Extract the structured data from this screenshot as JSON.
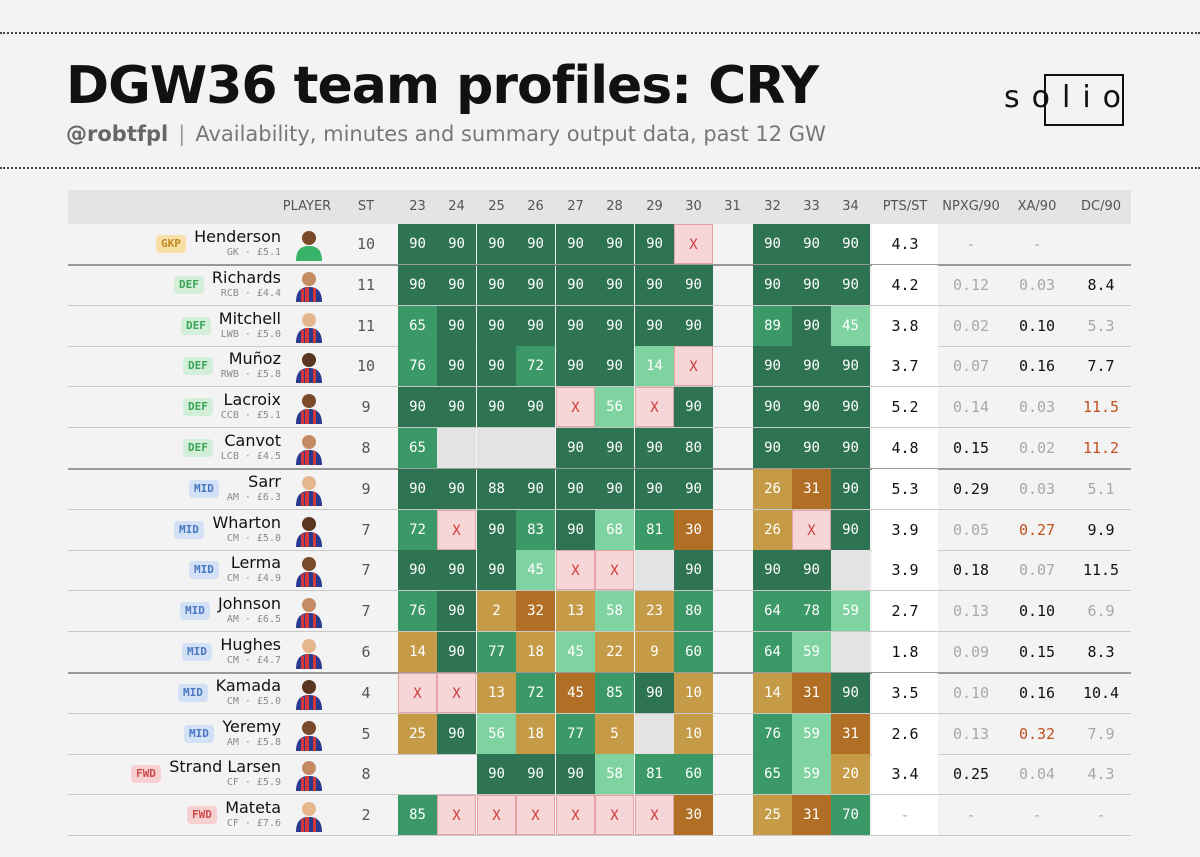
{
  "title": "DGW36 team profiles: CRY",
  "subtitle": {
    "handle": "@robtfpl",
    "separator": "|",
    "text": "Availability, minutes and summary output data, past 12 GW"
  },
  "logo": {
    "text": "solio"
  },
  "headers": {
    "player": "PLAYER",
    "st": "ST",
    "gws": [
      "23",
      "24",
      "25",
      "26",
      "27",
      "28",
      "29",
      "30",
      "31",
      "32",
      "33",
      "34"
    ],
    "stats": [
      "PTS/ST",
      "NPXG/90",
      "XA/90",
      "DC/90"
    ]
  },
  "players": [
    {
      "pos": "GKP",
      "name": "Henderson",
      "meta": "GK · £5.1",
      "st": "10",
      "mins": [
        "90",
        "90",
        "90",
        "90",
        "90",
        "90",
        "90",
        "X",
        "",
        "90",
        "90",
        "90"
      ],
      "stats": [
        "4.3",
        "-",
        "-",
        ""
      ]
    },
    {
      "pos": "DEF",
      "name": "Richards",
      "meta": "RCB · £4.4",
      "st": "11",
      "mins": [
        "90",
        "90",
        "90",
        "90",
        "90",
        "90",
        "90",
        "90",
        "",
        "90",
        "90",
        "90"
      ],
      "stats": [
        "4.2",
        "0.12",
        "0.03",
        "8.4"
      ]
    },
    {
      "pos": "DEF",
      "name": "Mitchell",
      "meta": "LWB · £5.0",
      "st": "11",
      "mins": [
        "65",
        "90",
        "90",
        "90",
        "90",
        "90",
        "90",
        "90",
        "",
        "89",
        "90",
        "45"
      ],
      "stats": [
        "3.8",
        "0.02",
        "0.10",
        "5.3"
      ]
    },
    {
      "pos": "DEF",
      "name": "Muñoz",
      "meta": "RWB · £5.8",
      "st": "10",
      "mins": [
        "76",
        "90",
        "90",
        "72",
        "90",
        "90",
        "14",
        "X",
        "",
        "90",
        "90",
        "90"
      ],
      "stats": [
        "3.7",
        "0.07",
        "0.16",
        "7.7"
      ]
    },
    {
      "pos": "DEF",
      "name": "Lacroix",
      "meta": "CCB · £5.1",
      "st": "9",
      "mins": [
        "90",
        "90",
        "90",
        "90",
        "X",
        "56",
        "X",
        "90",
        "",
        "90",
        "90",
        "90"
      ],
      "stats": [
        "5.2",
        "0.14",
        "0.03",
        "11.5"
      ]
    },
    {
      "pos": "DEF",
      "name": "Canvot",
      "meta": "LCB · £4.5",
      "st": "8",
      "mins": [
        "65",
        "",
        "",
        "",
        "90",
        "90",
        "90",
        "80",
        "",
        "90",
        "90",
        "90"
      ],
      "stats": [
        "4.8",
        "0.15",
        "0.02",
        "11.2"
      ]
    },
    {
      "pos": "MID",
      "name": "Sarr",
      "meta": "AM · £6.3",
      "st": "9",
      "mins": [
        "90",
        "90",
        "88",
        "90",
        "90",
        "90",
        "90",
        "90",
        "",
        "26",
        "31",
        "90"
      ],
      "stats": [
        "5.3",
        "0.29",
        "0.03",
        "5.1"
      ]
    },
    {
      "pos": "MID",
      "name": "Wharton",
      "meta": "CM · £5.0",
      "st": "7",
      "mins": [
        "72",
        "X",
        "90",
        "83",
        "90",
        "68",
        "81",
        "30",
        "",
        "26",
        "X",
        "90"
      ],
      "stats": [
        "3.9",
        "0.05",
        "0.27",
        "9.9"
      ]
    },
    {
      "pos": "MID",
      "name": "Lerma",
      "meta": "CM · £4.9",
      "st": "7",
      "mins": [
        "90",
        "90",
        "90",
        "45",
        "X",
        "X",
        "",
        "90",
        "",
        "90",
        "90",
        ""
      ],
      "stats": [
        "3.9",
        "0.18",
        "0.07",
        "11.5"
      ]
    },
    {
      "pos": "MID",
      "name": "Johnson",
      "meta": "AM · £6.5",
      "st": "7",
      "mins": [
        "76",
        "90",
        "2",
        "32",
        "13",
        "58",
        "23",
        "80",
        "",
        "64",
        "78",
        "59"
      ],
      "stats": [
        "2.7",
        "0.13",
        "0.10",
        "6.9"
      ]
    },
    {
      "pos": "MID",
      "name": "Hughes",
      "meta": "CM · £4.7",
      "st": "6",
      "mins": [
        "14",
        "90",
        "77",
        "18",
        "45",
        "22",
        "9",
        "60",
        "",
        "64",
        "59",
        ""
      ],
      "stats": [
        "1.8",
        "0.09",
        "0.15",
        "8.3"
      ]
    },
    {
      "pos": "MID",
      "name": "Kamada",
      "meta": "CM · £5.0",
      "st": "4",
      "mins": [
        "X",
        "X",
        "13",
        "72",
        "45",
        "85",
        "90",
        "10",
        "",
        "14",
        "31",
        "90"
      ],
      "stats": [
        "3.5",
        "0.10",
        "0.16",
        "10.4"
      ]
    },
    {
      "pos": "MID",
      "name": "Yeremy",
      "meta": "AM · £5.8",
      "st": "5",
      "mins": [
        "25",
        "90",
        "56",
        "18",
        "77",
        "5",
        "",
        "10",
        "",
        "76",
        "59",
        "31"
      ],
      "stats": [
        "2.6",
        "0.13",
        "0.32",
        "7.9"
      ]
    },
    {
      "pos": "FWD",
      "name": "Strand Larsen",
      "meta": "CF · £5.9",
      "st": "8",
      "mins": [
        "",
        "",
        "90",
        "90",
        "90",
        "58",
        "81",
        "60",
        "",
        "65",
        "59",
        "20"
      ],
      "stats": [
        "3.4",
        "0.25",
        "0.04",
        "4.3"
      ]
    },
    {
      "pos": "FWD",
      "name": "Mateta",
      "meta": "CF · £7.6",
      "st": "2",
      "mins": [
        "85",
        "X",
        "X",
        "X",
        "X",
        "X",
        "X",
        "30",
        "",
        "25",
        "31",
        "70"
      ],
      "stats": [
        "-",
        "-",
        "-",
        "-"
      ]
    }
  ],
  "colors": {
    "dark_green": "#2e7452",
    "mid_green": "#3a9966",
    "light_green": "#7fd3a0",
    "gold": "#c69b48",
    "bronze": "#b06f24",
    "absent_pink": "#f6d6d6",
    "missing_grey": "#e3e3e3",
    "highlight_orange": "#c0501e"
  }
}
